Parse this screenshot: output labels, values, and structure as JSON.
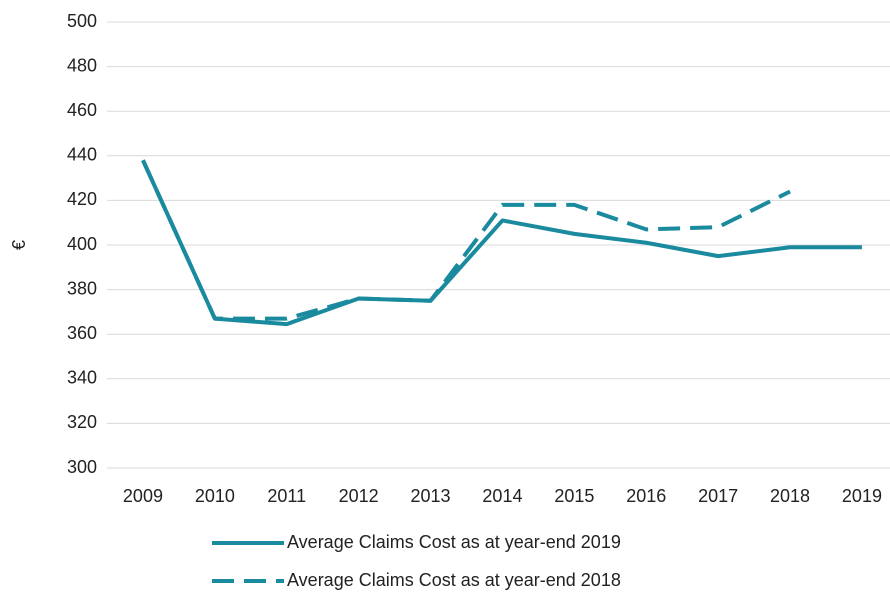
{
  "chart_data": {
    "type": "line",
    "y_label": "€",
    "categories": [
      "2009",
      "2010",
      "2011",
      "2012",
      "2013",
      "2014",
      "2015",
      "2016",
      "2017",
      "2018",
      "2019"
    ],
    "series": [
      {
        "name": "Average Claims Cost as at year-end 2019",
        "color": "#1a8a9e",
        "dash": false,
        "values": [
          438,
          367,
          364.5,
          376,
          375,
          411,
          405,
          401,
          395,
          399,
          399
        ]
      },
      {
        "name": "Average Claims Cost as at year-end 2018",
        "color": "#1a8a9e",
        "dash": true,
        "values": [
          438,
          367,
          367,
          376,
          375,
          418,
          418,
          407,
          408,
          424,
          null
        ]
      }
    ],
    "ylim": [
      300,
      500
    ],
    "yticks": [
      300,
      320,
      340,
      360,
      380,
      400,
      420,
      440,
      460,
      480,
      500
    ],
    "grid": true,
    "legend": "bottom"
  }
}
